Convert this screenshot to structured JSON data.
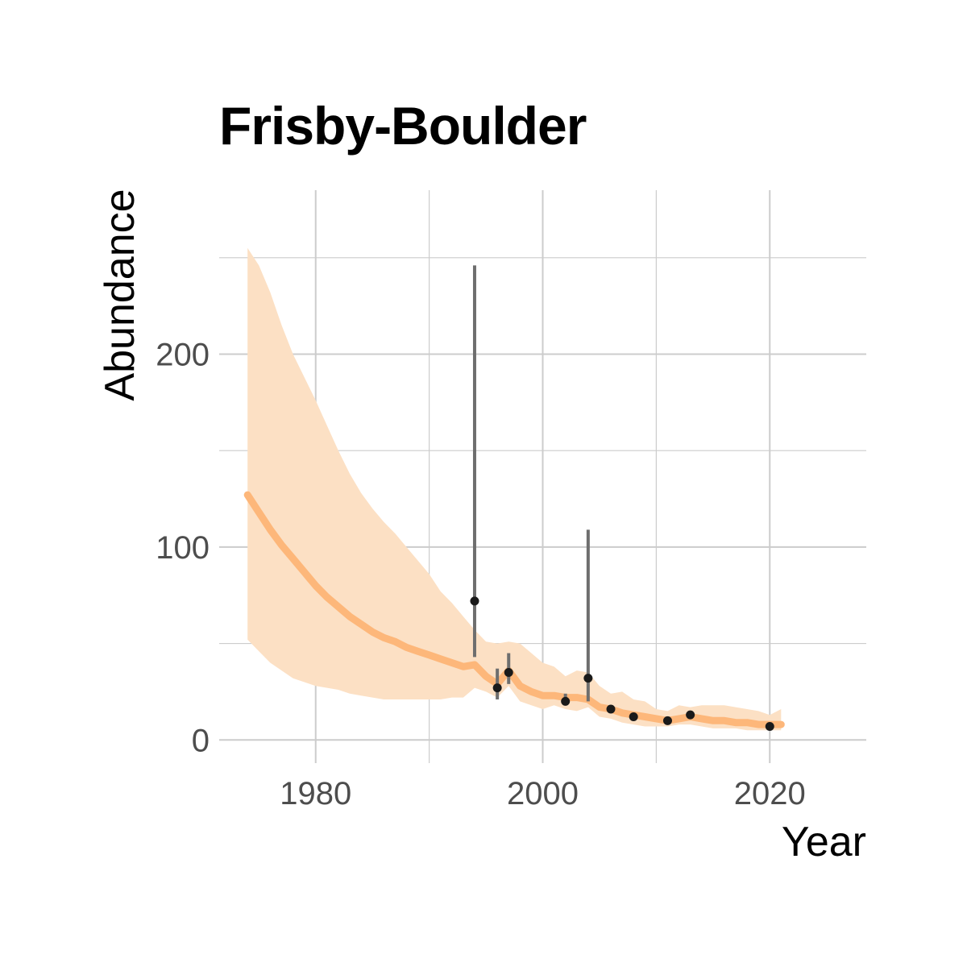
{
  "chart_data": {
    "type": "line",
    "title": "Frisby-Boulder",
    "xlabel": "Year",
    "ylabel": "Abundance",
    "xlim": [
      1971.5,
      2028.5
    ],
    "ylim": [
      -12,
      285
    ],
    "x_ticks": [
      1980,
      2000,
      2020
    ],
    "y_ticks": [
      0,
      100,
      200
    ],
    "x_minor_grid": [
      1990,
      2010
    ],
    "y_minor_grid": [
      50,
      150,
      250
    ],
    "grid": true,
    "legend": "none",
    "colors": {
      "trend": "#fdb77a",
      "ribbon": "#fce0c4",
      "points": "#1a1a1a",
      "errorbars": "#6e6e6e",
      "grid": "#cccccc"
    },
    "series": [
      {
        "kind": "trend",
        "x": [
          1974,
          1975,
          1976,
          1977,
          1978,
          1979,
          1980,
          1981,
          1982,
          1983,
          1984,
          1985,
          1986,
          1987,
          1988,
          1989,
          1990,
          1991,
          1992,
          1993,
          1994,
          1995,
          1996,
          1997,
          1998,
          1999,
          2000,
          2001,
          2002,
          2003,
          2004,
          2005,
          2006,
          2007,
          2008,
          2009,
          2010,
          2011,
          2012,
          2013,
          2014,
          2015,
          2016,
          2017,
          2018,
          2019,
          2020,
          2021
        ],
        "y": [
          127,
          118,
          109,
          101,
          94,
          87,
          80,
          74,
          69,
          64,
          60,
          56,
          53,
          51,
          48,
          46,
          44,
          42,
          40,
          38,
          39,
          33,
          29,
          36,
          28,
          25,
          23,
          23,
          22,
          22,
          21,
          17,
          16,
          14,
          13,
          12,
          11,
          10,
          11,
          12,
          11,
          10,
          10,
          9,
          9,
          8,
          8,
          8
        ],
        "lower": [
          52,
          46,
          40,
          36,
          32,
          30,
          28,
          27,
          26,
          24,
          23,
          22,
          21,
          21,
          21,
          21,
          21,
          21,
          22,
          22,
          27,
          25,
          22,
          28,
          20,
          18,
          16,
          18,
          16,
          15,
          17,
          12,
          11,
          9,
          8,
          7,
          7,
          7,
          8,
          8,
          7,
          6,
          6,
          6,
          5,
          5,
          5,
          5
        ],
        "upper": [
          255,
          246,
          232,
          215,
          200,
          188,
          176,
          163,
          150,
          138,
          128,
          120,
          113,
          107,
          100,
          93,
          86,
          77,
          71,
          64,
          57,
          51,
          50,
          51,
          50,
          45,
          40,
          38,
          33,
          36,
          35,
          28,
          24,
          25,
          21,
          20,
          16,
          15,
          18,
          17,
          18,
          18,
          18,
          17,
          16,
          15,
          13,
          16
        ]
      },
      {
        "kind": "observations",
        "x": [
          1994,
          1996,
          1997,
          2002,
          2004,
          2006,
          2008,
          2011,
          2013,
          2020
        ],
        "y": [
          72,
          27,
          35,
          20,
          32,
          16,
          12,
          10,
          13,
          7
        ],
        "lower": [
          43,
          21,
          29,
          18,
          20,
          null,
          null,
          null,
          null,
          null
        ],
        "upper": [
          246,
          37,
          45,
          24,
          109,
          null,
          null,
          null,
          null,
          null
        ]
      }
    ]
  }
}
